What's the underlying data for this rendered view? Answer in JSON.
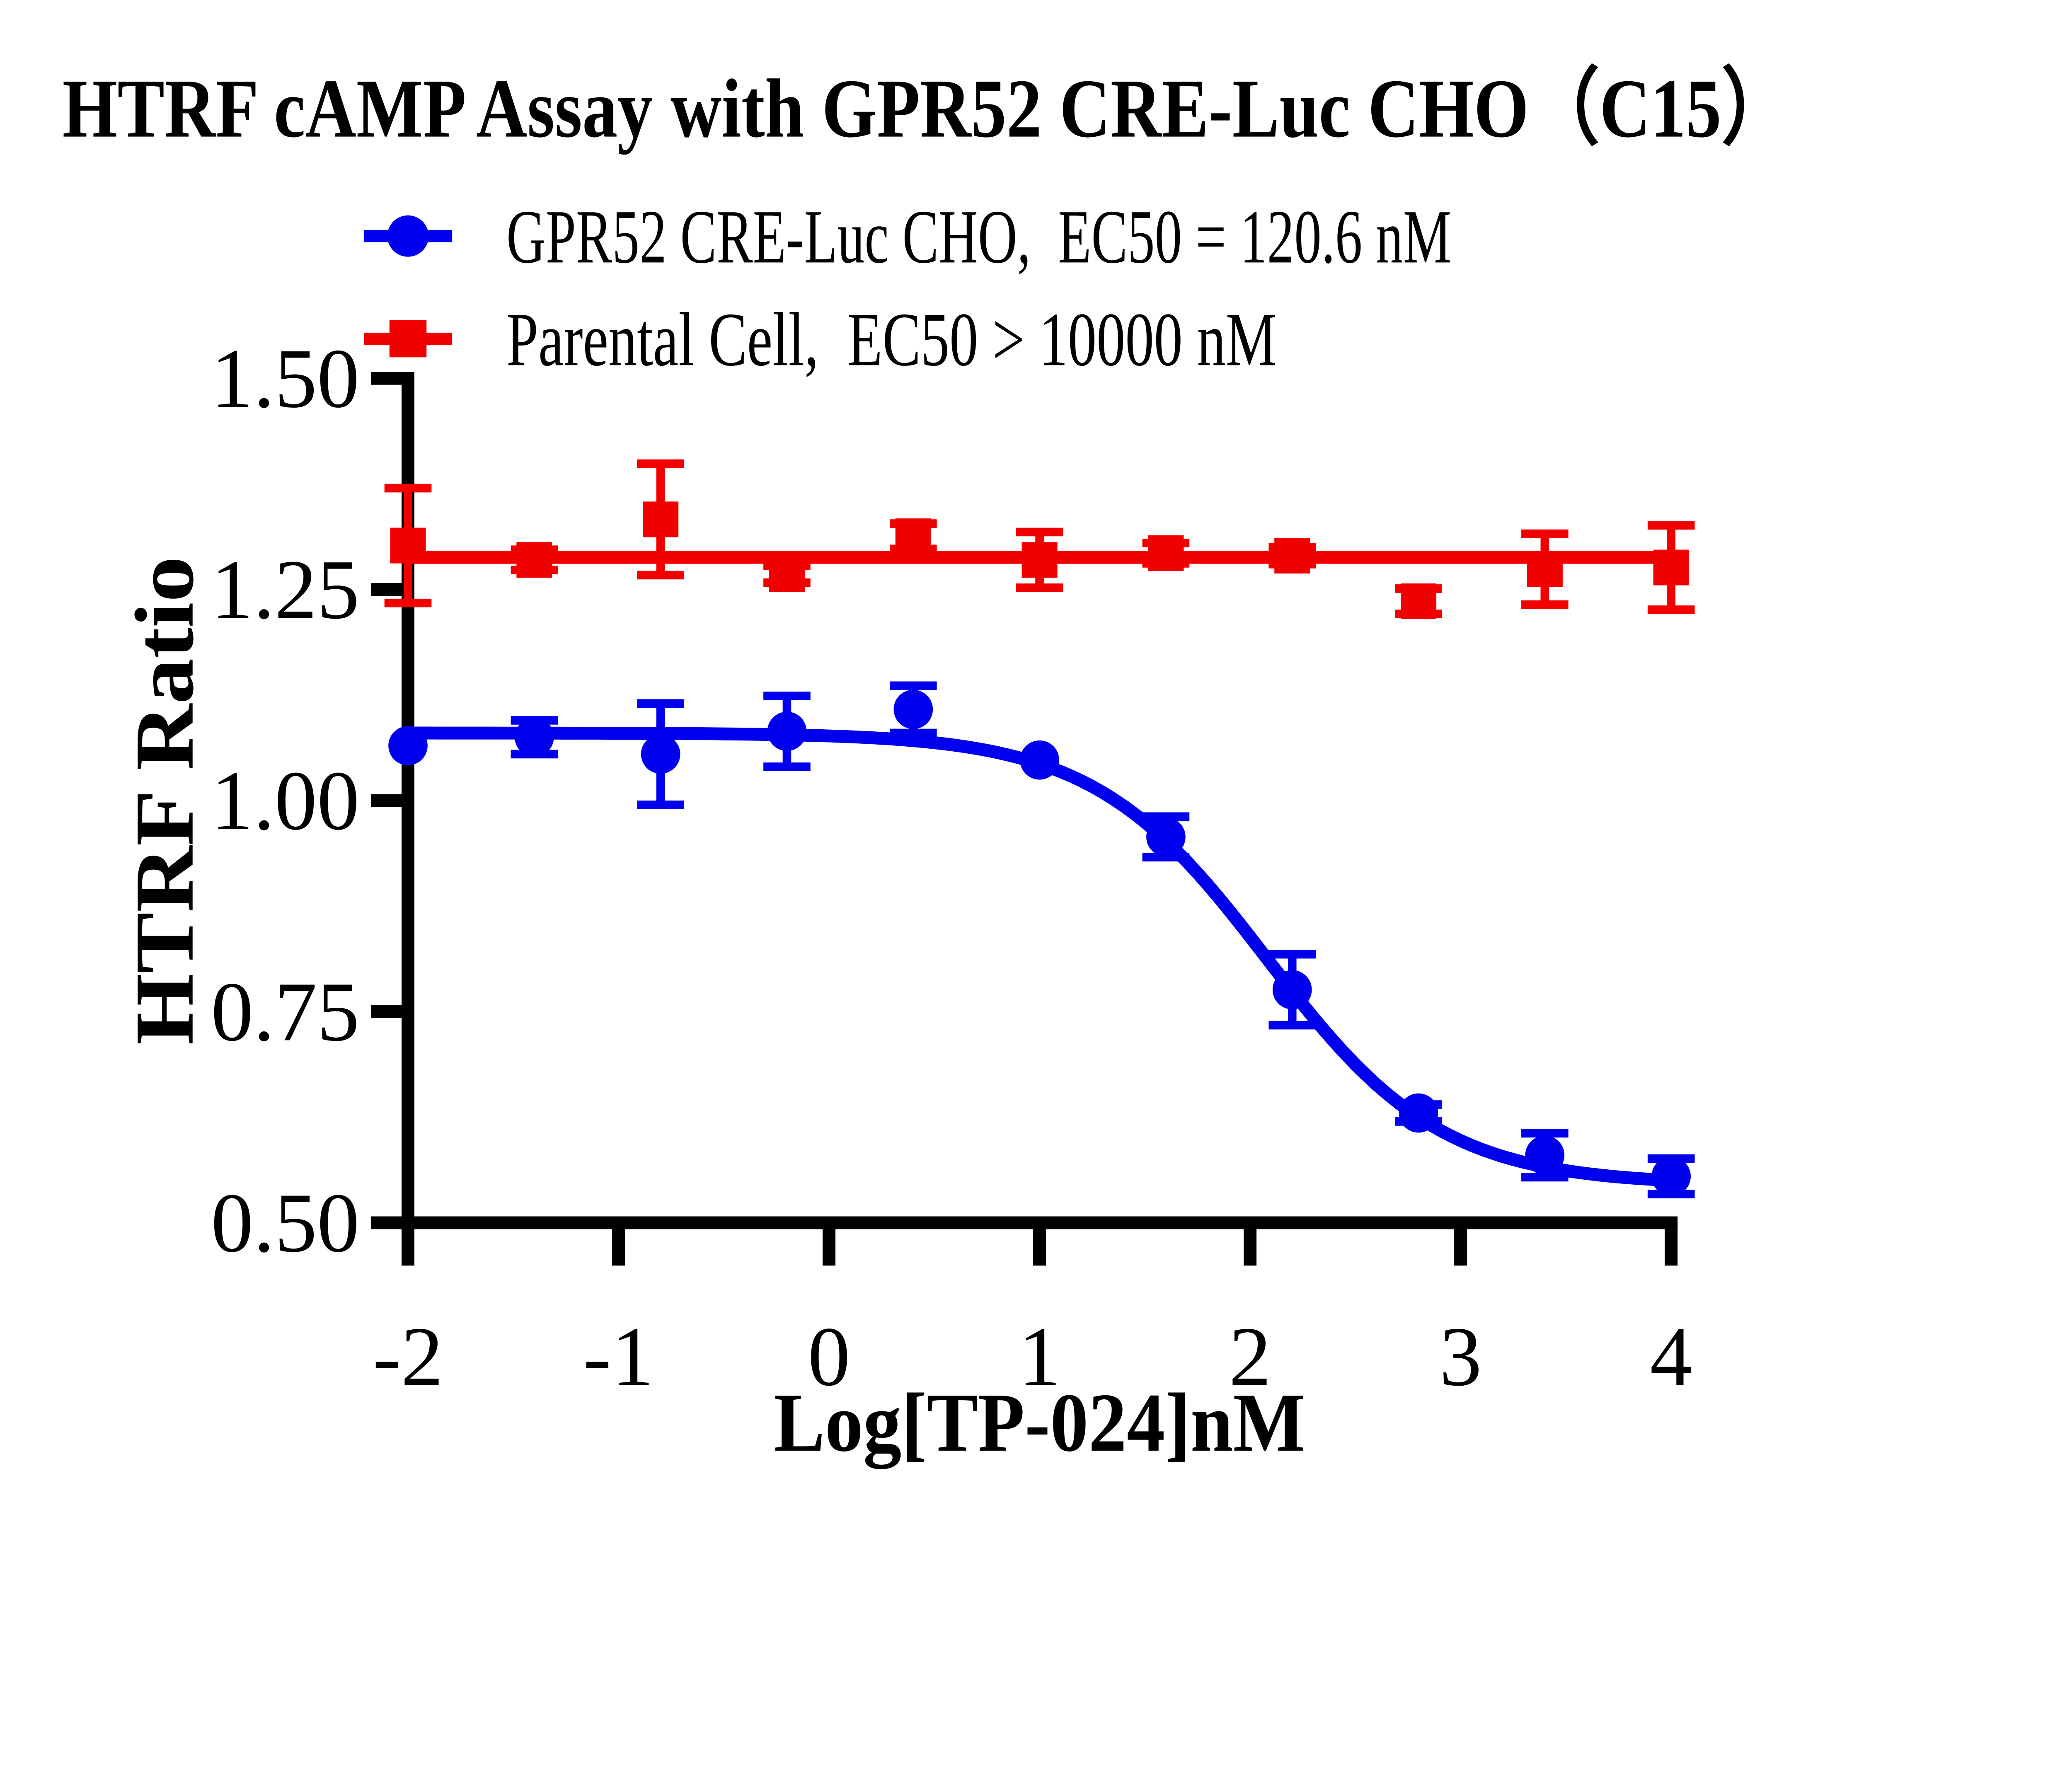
{
  "title": "HTRF cAMP Assay with GPR52 CRE-Luc CHO（C15）",
  "legend": {
    "items": [
      {
        "label": "GPR52 CRE-Luc CHO,  EC50 = 120.6 nM",
        "color": "#0000ee",
        "marker": "circle"
      },
      {
        "label": "Parental Cell,  EC50 > 10000 nM",
        "color": "#f20000",
        "marker": "square"
      }
    ]
  },
  "chart_data": {
    "type": "line",
    "title": "HTRF cAMP Assay with GPR52 CRE-Luc CHO（C15）",
    "xlabel": "Log[TP-024]nM",
    "ylabel": "HTRF Ratio",
    "xlim": [
      -2,
      4
    ],
    "ylim": [
      0.5,
      1.5
    ],
    "grid": false,
    "legend_position": "top",
    "x_ticks": [
      {
        "v": -2,
        "label": "-2"
      },
      {
        "v": -1,
        "label": "-1"
      },
      {
        "v": 0,
        "label": "0"
      },
      {
        "v": 1,
        "label": "1"
      },
      {
        "v": 2,
        "label": "2"
      },
      {
        "v": 3,
        "label": "3"
      },
      {
        "v": 4,
        "label": "4"
      }
    ],
    "y_ticks": [
      {
        "v": 0.5,
        "label": "0.50"
      },
      {
        "v": 0.75,
        "label": "0.75"
      },
      {
        "v": 1.0,
        "label": "1.00"
      },
      {
        "v": 1.25,
        "label": "1.25"
      },
      {
        "v": 1.5,
        "label": "1.50"
      }
    ],
    "x": [
      -2,
      -1.4,
      -0.8,
      -0.2,
      0.4,
      1,
      1.6,
      2.2,
      2.8,
      3.4,
      4
    ],
    "series": [
      {
        "name": "GPR52 CRE-Luc CHO",
        "ec50": "EC50 = 120.6 nM",
        "color": "#0000ee",
        "marker": "circle",
        "values": [
          1.065,
          1.075,
          1.055,
          1.082,
          1.108,
          1.048,
          0.957,
          0.776,
          0.63,
          0.58,
          0.555
        ],
        "errors": [
          0,
          0.02,
          0.06,
          0.042,
          0.028,
          0,
          0.024,
          0.042,
          0.01,
          0.026,
          0.021
        ],
        "fit": {
          "type": "4pl",
          "top": 1.08,
          "bottom": 0.545,
          "logEC50": 2.081,
          "hill": 1.05
        }
      },
      {
        "name": "Parental Cell",
        "ec50": "EC50 > 10000 nM",
        "color": "#f20000",
        "marker": "square",
        "values": [
          1.302,
          1.285,
          1.333,
          1.268,
          1.313,
          1.285,
          1.293,
          1.29,
          1.236,
          1.274,
          1.276
        ],
        "errors": [
          0.068,
          0.012,
          0.066,
          0.01,
          0.015,
          0.033,
          0.012,
          0.01,
          0.015,
          0.042,
          0.05
        ],
        "fit": {
          "type": "flat",
          "value": 1.288
        }
      }
    ]
  }
}
